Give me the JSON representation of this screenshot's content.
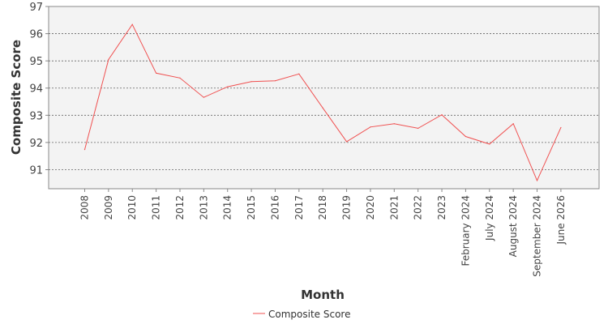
{
  "chart_data": {
    "type": "line",
    "title": "",
    "xlabel": "Month",
    "ylabel": "Composite Score",
    "ylim": [
      90.3,
      97
    ],
    "yticks": [
      91,
      92,
      93,
      94,
      95,
      96,
      97
    ],
    "grid": "horizontal dashed",
    "legend_position": "bottom",
    "categories": [
      "2008",
      "2009",
      "2010",
      "2011",
      "2012",
      "2013",
      "2014",
      "2015",
      "2016",
      "2017",
      "2018",
      "2019",
      "2020",
      "2021",
      "2022",
      "2023",
      "February 2024",
      "July 2024",
      "August 2024",
      "September 2024",
      "June 2026"
    ],
    "series": [
      {
        "name": "Composite Score",
        "color": "#f05050",
        "values": [
          91.74,
          95.05,
          96.34,
          94.55,
          94.37,
          93.66,
          94.05,
          94.24,
          94.27,
          94.52,
          93.27,
          92.03,
          92.57,
          92.69,
          92.52,
          93.02,
          92.22,
          91.94,
          92.69,
          90.6,
          92.55
        ]
      }
    ]
  }
}
